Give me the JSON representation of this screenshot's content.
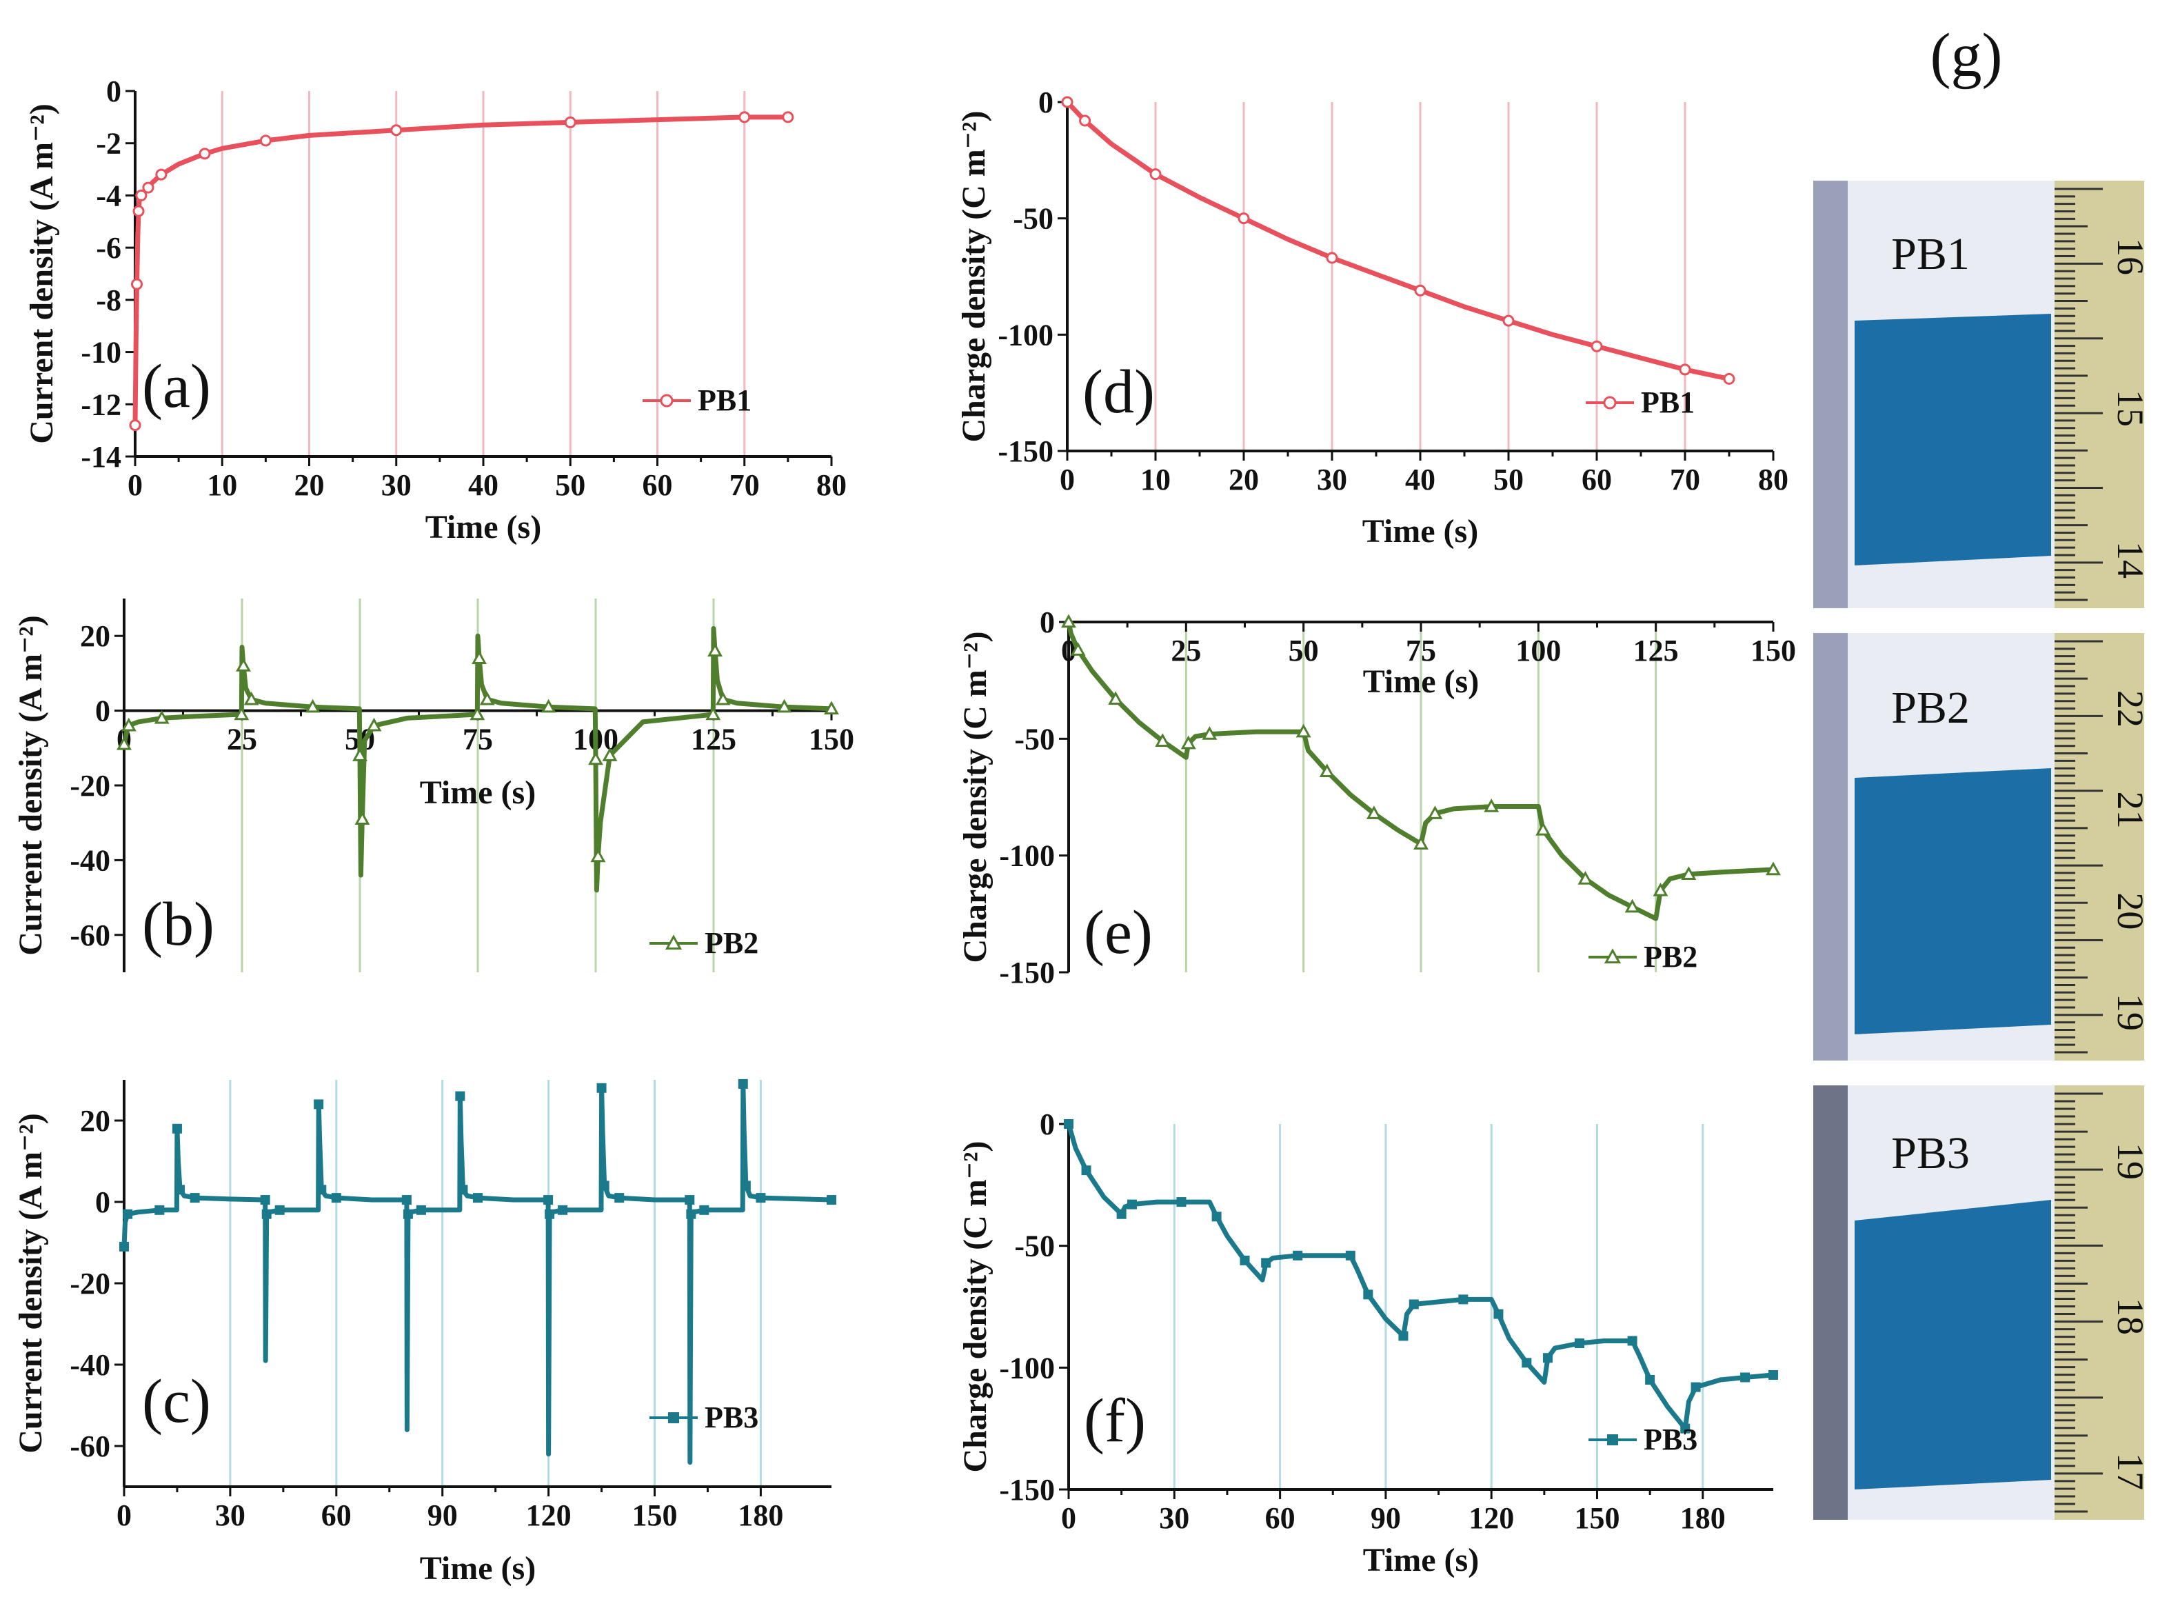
{
  "figure": {
    "panel_g_label": "(g)"
  },
  "chart_data": [
    {
      "id": "a",
      "type": "line",
      "panel_label": "(a)",
      "xlabel": "Time (s)",
      "ylabel": "Current density (A m⁻²)",
      "xlim": [
        0,
        80
      ],
      "ylim": [
        -14,
        0
      ],
      "xticks": [
        0,
        10,
        20,
        30,
        40,
        50,
        60,
        70,
        80
      ],
      "yticks": [
        0,
        -2,
        -4,
        -6,
        -8,
        -10,
        -12,
        -14
      ],
      "vlines": [
        10,
        20,
        30,
        40,
        50,
        60,
        70
      ],
      "color": "#e8505b",
      "vline_color": "#f2b8c0",
      "marker": "open-circle",
      "legend_position": "bottom-right",
      "series": [
        {
          "name": "PB1",
          "x": [
            0,
            0.1,
            0.2,
            0.3,
            0.4,
            0.5,
            0.7,
            1,
            1.5,
            2,
            3,
            5,
            8,
            10,
            15,
            20,
            30,
            40,
            50,
            60,
            70,
            75
          ],
          "y": [
            -12.8,
            -9.5,
            -7.4,
            -5.6,
            -4.6,
            -4.1,
            -4.0,
            -3.9,
            -3.7,
            -3.5,
            -3.2,
            -2.8,
            -2.4,
            -2.2,
            -1.9,
            -1.7,
            -1.5,
            -1.3,
            -1.2,
            -1.1,
            -1.0,
            -1.0
          ]
        }
      ]
    },
    {
      "id": "b",
      "type": "line",
      "panel_label": "(b)",
      "xlabel": "Time (s)",
      "ylabel": "Current density (A m⁻²)",
      "xlim": [
        0,
        150
      ],
      "ylim": [
        -70,
        30
      ],
      "xticks": [
        0,
        25,
        50,
        75,
        100,
        125,
        150
      ],
      "yticks": [
        20,
        0,
        -20,
        -40,
        -60
      ],
      "vlines": [
        25,
        50,
        75,
        100,
        125
      ],
      "color": "#4f7f2c",
      "vline_color": "#b8d4a8",
      "marker": "open-triangle",
      "legend_position": "bottom-right",
      "series": [
        {
          "name": "PB2",
          "x": [
            0,
            0.5,
            1,
            3,
            8,
            15,
            24.9,
            25,
            25.3,
            25.8,
            27,
            30,
            40,
            49.9,
            50,
            50.2,
            50.5,
            51,
            53,
            60,
            74.9,
            75,
            75.3,
            75.8,
            77,
            80,
            90,
            99.9,
            100,
            100.2,
            100.5,
            101,
            103,
            110,
            124.9,
            125,
            125.3,
            125.8,
            127,
            130,
            140,
            150
          ],
          "y": [
            -9,
            -6,
            -4,
            -3,
            -2,
            -1.5,
            -1,
            17,
            12,
            6,
            3,
            2,
            1,
            0.5,
            -12,
            -44,
            -29,
            -8,
            -4,
            -2,
            -1,
            20,
            14,
            7,
            3,
            2,
            1,
            0.5,
            -13,
            -48,
            -39,
            -30,
            -12,
            -3,
            -1,
            22,
            16,
            8,
            3,
            2,
            1,
            0.5
          ]
        }
      ]
    },
    {
      "id": "c",
      "type": "line",
      "panel_label": "(c)",
      "xlabel": "Time (s)",
      "ylabel": "Current density (A m⁻²)",
      "xlim": [
        0,
        200
      ],
      "ylim": [
        -70,
        30
      ],
      "xticks": [
        0,
        30,
        60,
        90,
        120,
        150,
        180
      ],
      "yticks": [
        20,
        0,
        -20,
        -40,
        -60
      ],
      "vlines": [
        30,
        60,
        90,
        120,
        150,
        180
      ],
      "color": "#1a7a8c",
      "vline_color": "#b2dbe3",
      "marker": "filled-square",
      "legend_position": "bottom-right",
      "series": [
        {
          "name": "PB3",
          "x": [
            0,
            0.3,
            1,
            4,
            10,
            14.9,
            15,
            15.3,
            15.8,
            17,
            20,
            30,
            39.9,
            40,
            40.3,
            41,
            44,
            54.9,
            55,
            55.3,
            55.8,
            57,
            60,
            70,
            79.9,
            80,
            80.3,
            81,
            84,
            94.9,
            95,
            95.3,
            95.8,
            97,
            100,
            110,
            119.9,
            120,
            120.3,
            121,
            124,
            134.9,
            135,
            135.3,
            135.8,
            137,
            140,
            150,
            159.9,
            160,
            160.3,
            161,
            164,
            174.9,
            175,
            175.3,
            175.8,
            177,
            180,
            200
          ],
          "y": [
            -11,
            -5,
            -3,
            -2.5,
            -2,
            -2,
            18,
            10,
            3,
            1.5,
            1,
            0.7,
            0.5,
            -39,
            -3,
            -2.5,
            -2,
            -2,
            24,
            15,
            3,
            1.5,
            1,
            0.5,
            0.5,
            -56,
            -3,
            -2.5,
            -2,
            -2,
            26,
            15,
            3,
            1.5,
            1,
            0.5,
            0.5,
            -62,
            -3,
            -2.5,
            -2,
            -2,
            28,
            17,
            4,
            1.5,
            1,
            0.5,
            0.5,
            -64,
            -3,
            -2.5,
            -2,
            -2,
            29,
            17,
            4,
            1.5,
            1,
            0.5
          ]
        }
      ]
    },
    {
      "id": "d",
      "type": "line",
      "panel_label": "(d)",
      "xlabel": "Time (s)",
      "ylabel": "Charge density (C m⁻²)",
      "xlim": [
        0,
        80
      ],
      "ylim": [
        -150,
        0
      ],
      "xticks": [
        0,
        10,
        20,
        30,
        40,
        50,
        60,
        70,
        80
      ],
      "yticks": [
        0,
        -50,
        -100,
        -150
      ],
      "vlines": [
        10,
        20,
        30,
        40,
        50,
        60,
        70
      ],
      "color": "#e8505b",
      "vline_color": "#f2b8c0",
      "marker": "open-circle",
      "legend_position": "bottom-right",
      "series": [
        {
          "name": "PB1",
          "x": [
            0,
            1,
            2,
            5,
            10,
            15,
            20,
            25,
            30,
            35,
            40,
            45,
            50,
            55,
            60,
            65,
            70,
            75
          ],
          "y": [
            0,
            -4,
            -8,
            -18,
            -31,
            -41,
            -50,
            -59,
            -67,
            -74,
            -81,
            -88,
            -94,
            -100,
            -105,
            -110,
            -115,
            -119
          ]
        }
      ]
    },
    {
      "id": "e",
      "type": "line",
      "panel_label": "(e)",
      "xlabel": "Time (s)",
      "ylabel": "Charge density (C m⁻²)",
      "xlim": [
        0,
        150
      ],
      "ylim": [
        -150,
        0
      ],
      "xticks": [
        0,
        25,
        50,
        75,
        100,
        125,
        150
      ],
      "yticks": [
        0,
        -50,
        -100,
        -150
      ],
      "vlines": [
        25,
        50,
        75,
        100,
        125
      ],
      "color": "#4f7f2c",
      "vline_color": "#b8d4a8",
      "marker": "open-triangle",
      "legend_position": "bottom-right",
      "series": [
        {
          "name": "PB2",
          "x": [
            0,
            0.5,
            2,
            5,
            10,
            15,
            20,
            25,
            25.5,
            27,
            30,
            40,
            50,
            51,
            55,
            60,
            65,
            70,
            75,
            76,
            78,
            82,
            90,
            100,
            101,
            105,
            110,
            115,
            120,
            125,
            126,
            128,
            132,
            140,
            150
          ],
          "y": [
            0,
            -5,
            -12,
            -21,
            -33,
            -43,
            -51,
            -58,
            -52,
            -49,
            -48,
            -47,
            -47,
            -55,
            -64,
            -74,
            -82,
            -89,
            -95,
            -86,
            -82,
            -80,
            -79,
            -79,
            -89,
            -100,
            -110,
            -117,
            -122,
            -127,
            -115,
            -110,
            -108,
            -107,
            -106
          ]
        }
      ]
    },
    {
      "id": "f",
      "type": "line",
      "panel_label": "(f)",
      "xlabel": "Time (s)",
      "ylabel": "Charge density (C m⁻²)",
      "xlim": [
        0,
        200
      ],
      "ylim": [
        -150,
        0
      ],
      "xticks": [
        0,
        30,
        60,
        90,
        120,
        150,
        180
      ],
      "yticks": [
        0,
        -50,
        -100,
        -150
      ],
      "vlines": [
        30,
        60,
        90,
        120,
        150,
        180
      ],
      "color": "#1a7a8c",
      "vline_color": "#b2dbe3",
      "marker": "filled-square",
      "legend_position": "bottom-right",
      "series": [
        {
          "name": "PB3",
          "x": [
            0,
            2,
            5,
            10,
            15,
            16,
            18,
            25,
            32,
            40,
            42,
            45,
            50,
            55,
            56,
            58,
            65,
            72,
            80,
            82,
            85,
            90,
            95,
            96,
            98,
            105,
            112,
            120,
            122,
            125,
            130,
            135,
            136,
            138,
            145,
            152,
            160,
            162,
            165,
            170,
            175,
            176,
            178,
            185,
            192,
            200
          ],
          "y": [
            0,
            -10,
            -19,
            -30,
            -37,
            -34,
            -33,
            -32,
            -32,
            -32,
            -38,
            -46,
            -56,
            -64,
            -57,
            -55,
            -54,
            -54,
            -54,
            -60,
            -70,
            -80,
            -87,
            -78,
            -74,
            -73,
            -72,
            -72,
            -78,
            -88,
            -98,
            -106,
            -96,
            -92,
            -90,
            -89,
            -89,
            -95,
            -105,
            -116,
            -125,
            -114,
            -108,
            -105,
            -104,
            -103
          ]
        }
      ]
    }
  ],
  "photos": [
    {
      "label": "PB1",
      "ruler_numbers": [
        "16",
        "15",
        "14"
      ]
    },
    {
      "label": "PB2",
      "ruler_numbers": [
        "22",
        "21",
        "20",
        "19"
      ]
    },
    {
      "label": "PB3",
      "ruler_numbers": [
        "19",
        "18",
        "17"
      ]
    }
  ],
  "colors": {
    "pb1": "#e8505b",
    "pb2": "#4f7f2c",
    "pb3": "#1a7a8c",
    "film_blue": "#1b6fa6"
  }
}
